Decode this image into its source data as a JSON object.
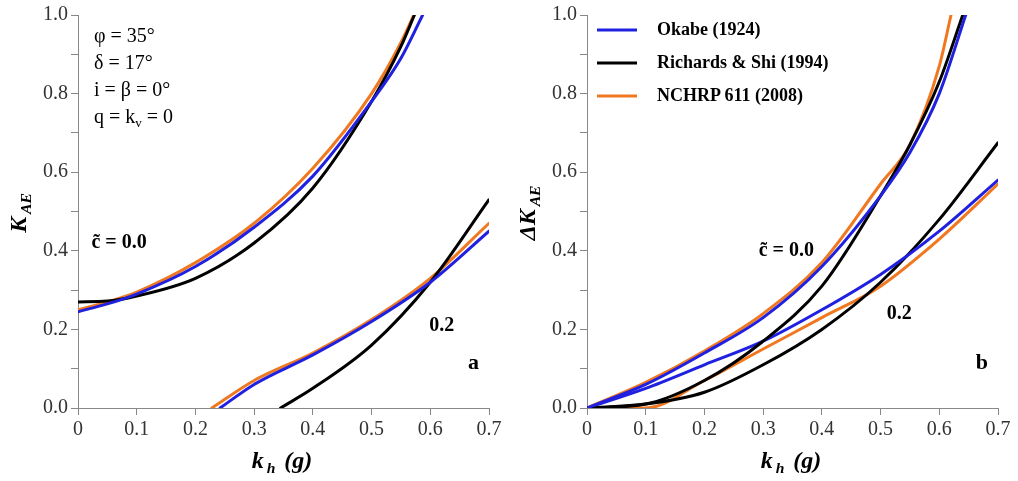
{
  "chart_data": [
    {
      "type": "line",
      "title": "a",
      "xlabel": "k$_{h}$ (g)",
      "ylabel": "K$_{AE}$",
      "xlim": [
        0,
        0.7
      ],
      "ylim": [
        0,
        1
      ],
      "xticks": [
        0,
        0.1,
        0.2,
        0.3,
        0.4,
        0.5,
        0.6,
        0.7
      ],
      "yticks": [
        {
          "value": 0,
          "label": "0.0"
        },
        {
          "value": 0.1,
          "label": null
        },
        {
          "value": 0.2,
          "label": "0.2"
        },
        {
          "value": 0.3,
          "label": null
        },
        {
          "value": 0.4,
          "label": "0.4"
        },
        {
          "value": 0.5,
          "label": null
        },
        {
          "value": 0.6,
          "label": "0.6"
        },
        {
          "value": 0.7,
          "label": null
        },
        {
          "value": 0.8,
          "label": "0.8"
        },
        {
          "value": 0.9,
          "label": null
        },
        {
          "value": 1,
          "label": "1.0"
        }
      ],
      "grid": false,
      "legend": false,
      "marker": "none",
      "line_style": "solid",
      "annotations": [
        "φ = 35°",
        "δ = 17°",
        "i = β = 0°",
        "q = k$_{v}$ = 0",
        "c̃ = 0.0",
        "0.2"
      ],
      "series": [
        {
          "color": "#2020e0",
          "x": [
            0,
            0.05,
            0.1,
            0.2,
            0.3,
            0.4,
            0.5,
            0.55,
            0.587
          ],
          "values": [
            0.245,
            0.265,
            0.29,
            0.36,
            0.46,
            0.59,
            0.78,
            0.89,
            1.0
          ]
        },
        {
          "color": "#000000",
          "x": [
            0,
            0.05,
            0.1,
            0.2,
            0.3,
            0.4,
            0.5,
            0.55,
            0.573
          ],
          "values": [
            0.27,
            0.272,
            0.285,
            0.33,
            0.42,
            0.56,
            0.78,
            0.92,
            1.0
          ]
        },
        {
          "color": "#f07820",
          "x": [
            0,
            0.05,
            0.1,
            0.2,
            0.3,
            0.4,
            0.5,
            0.55,
            0.572
          ],
          "values": [
            0.25,
            0.27,
            0.295,
            0.37,
            0.47,
            0.61,
            0.8,
            0.93,
            1.0
          ]
        },
        {
          "color": "#2020e0",
          "x": [
            0.242,
            0.3,
            0.4,
            0.5,
            0.6,
            0.7
          ],
          "values": [
            0,
            0.06,
            0.135,
            0.22,
            0.32,
            0.45
          ]
        },
        {
          "color": "#000000",
          "x": [
            0.345,
            0.4,
            0.5,
            0.6,
            0.7
          ],
          "values": [
            0,
            0.05,
            0.16,
            0.32,
            0.53
          ]
        },
        {
          "color": "#f07820",
          "x": [
            0.228,
            0.3,
            0.4,
            0.5,
            0.6,
            0.7
          ],
          "values": [
            0,
            0.07,
            0.14,
            0.225,
            0.33,
            0.47
          ]
        }
      ]
    },
    {
      "type": "line",
      "title": "b",
      "xlabel": "k$_{h}$ (g)",
      "ylabel": "ΔK$_{AE}$",
      "xlim": [
        0,
        0.7
      ],
      "ylim": [
        0,
        1
      ],
      "xticks": [
        0,
        0.1,
        0.2,
        0.3,
        0.4,
        0.5,
        0.6,
        0.7
      ],
      "yticks": [
        {
          "value": 0,
          "label": "0.0"
        },
        {
          "value": 0.1,
          "label": null
        },
        {
          "value": 0.2,
          "label": "0.2"
        },
        {
          "value": 0.3,
          "label": null
        },
        {
          "value": 0.4,
          "label": "0.4"
        },
        {
          "value": 0.5,
          "label": null
        },
        {
          "value": 0.6,
          "label": "0.6"
        },
        {
          "value": 0.7,
          "label": null
        },
        {
          "value": 0.8,
          "label": "0.8"
        },
        {
          "value": 0.9,
          "label": null
        },
        {
          "value": 1,
          "label": "1.0"
        }
      ],
      "grid": false,
      "legend": "top left",
      "marker": "none",
      "line_style": "solid",
      "annotations": [
        "c̃ = 0.0",
        "0.2"
      ],
      "series": [
        {
          "name": "Okabe (1924)",
          "color": "#2020e0",
          "x": [
            0,
            0.1,
            0.2,
            0.3,
            0.4,
            0.5,
            0.55,
            0.6,
            0.645
          ],
          "values": [
            0,
            0.06,
            0.14,
            0.23,
            0.36,
            0.54,
            0.65,
            0.8,
            1.0
          ]
        },
        {
          "name": "Richards & Shi (1994)",
          "color": "#000000",
          "x": [
            0,
            0.1,
            0.2,
            0.3,
            0.4,
            0.5,
            0.55,
            0.6,
            0.64
          ],
          "values": [
            0,
            0.01,
            0.07,
            0.17,
            0.31,
            0.54,
            0.67,
            0.83,
            1.0
          ]
        },
        {
          "name": "NCHRP 611 (2008)",
          "color": "#f07820",
          "x": [
            0,
            0.1,
            0.2,
            0.3,
            0.4,
            0.5,
            0.55,
            0.6,
            0.62
          ],
          "values": [
            0,
            0.065,
            0.145,
            0.24,
            0.37,
            0.57,
            0.67,
            0.87,
            1.0
          ]
        },
        {
          "color": "#2020e0",
          "x": [
            0,
            0.1,
            0.2,
            0.3,
            0.4,
            0.5,
            0.6,
            0.7
          ],
          "values": [
            0,
            0.05,
            0.11,
            0.17,
            0.25,
            0.34,
            0.45,
            0.58
          ]
        },
        {
          "color": "#000000",
          "x": [
            0,
            0.1,
            0.2,
            0.3,
            0.4,
            0.5,
            0.6,
            0.7
          ],
          "values": [
            0,
            0.01,
            0.04,
            0.11,
            0.2,
            0.32,
            0.48,
            0.675
          ]
        },
        {
          "color": "#f07820",
          "x": [
            0,
            0.05,
            0.1,
            0.2,
            0.3,
            0.4,
            0.5,
            0.6,
            0.7
          ],
          "values": [
            0,
            0,
            0,
            0.07,
            0.15,
            0.23,
            0.31,
            0.43,
            0.57
          ]
        }
      ]
    }
  ]
}
